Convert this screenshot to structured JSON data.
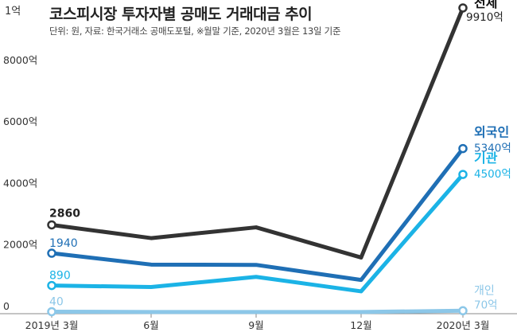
{
  "title": "코스피시장 투자자별 공매도 거래대금 추이",
  "subtitle": "단위: 원, 자료: 한국거래소 공매도포털, ※월말 기준, 2020년 3월은 13일 기준",
  "top_tick_label": "1억",
  "chart_data": {
    "type": "line",
    "title": "코스피시장 투자자별 공매도 거래대금 추이",
    "categories": [
      "2019년 3월",
      "6월",
      "9월",
      "12월",
      "2020년 3월"
    ],
    "y_tick_values": [
      0,
      2000,
      4000,
      6000,
      8000
    ],
    "y_tick_labels": [
      "0",
      "2000억",
      "4000억",
      "6000억",
      "8000억"
    ],
    "ylim": [
      0,
      10000
    ],
    "grid": false,
    "series": [
      {
        "name": "전체",
        "color": "#333333",
        "values": [
          2860,
          2430,
          2780,
          1800,
          9910
        ],
        "start_label": "2860",
        "end_label": "9910억"
      },
      {
        "name": "외국인",
        "color": "#1f6fb5",
        "values": [
          1940,
          1570,
          1560,
          1070,
          5340
        ],
        "start_label": "1940",
        "end_label": "5340억"
      },
      {
        "name": "기관",
        "color": "#1bb3e6",
        "values": [
          890,
          840,
          1170,
          700,
          4500
        ],
        "start_label": "890",
        "end_label": "4500억"
      },
      {
        "name": "개인",
        "color": "#8cc7e8",
        "values": [
          40,
          30,
          30,
          30,
          70
        ],
        "start_label": "40",
        "end_label": "70억"
      }
    ]
  }
}
